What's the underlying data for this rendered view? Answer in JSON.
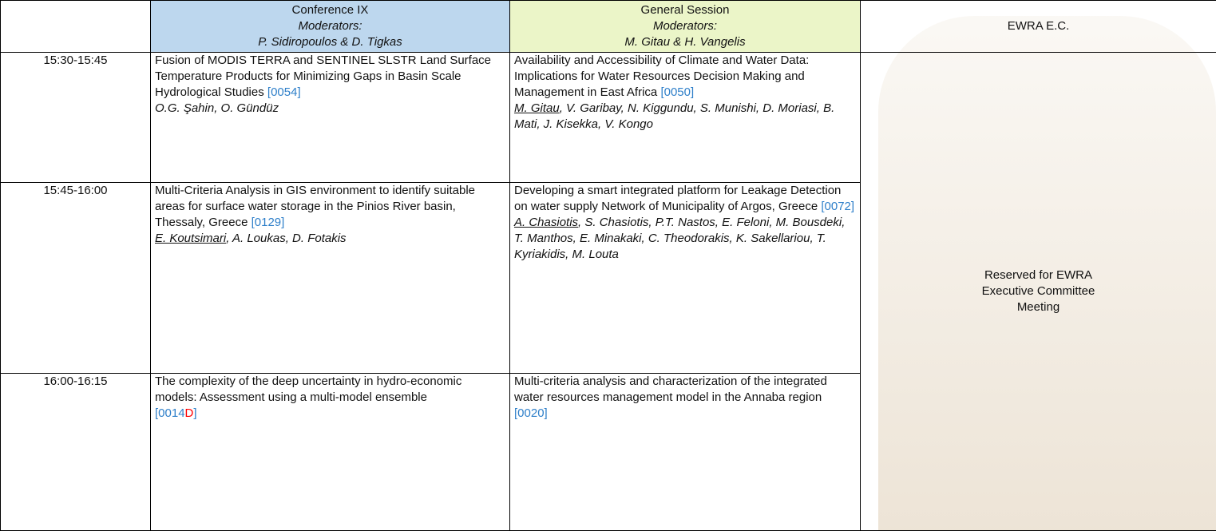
{
  "header": {
    "sessions": [
      {
        "title": "Conference IX",
        "moderators_label": "Moderators:",
        "moderators": "P. Sidiropoulos & D. Tigkas"
      },
      {
        "title": "General Session",
        "moderators_label": "Moderators:",
        "moderators": "M. Gitau & H. Vangelis"
      },
      {
        "title": "EWRA E.C."
      }
    ]
  },
  "rows": [
    {
      "time": "15:30-15:45",
      "papers": [
        {
          "title": "Fusion of MODIS TERRA and SENTINEL SLSTR Land Surface Temperature Products for Minimizing Gaps in Basin Scale Hydrological Studies",
          "code": "[0054]",
          "authors": "O.G. Şahin, O. Gündüz"
        },
        {
          "title": "Availability and Accessibility of Climate and Water Data: Implications for Water Resources Decision Making and Management in East Africa",
          "code": "[0050]",
          "presenter": "M. Gitau",
          "authors": ", V. Garibay, N. Kiggundu, S. Munishi, D. Moriasi, B. Mati, J. Kisekka, V. Kongo"
        }
      ]
    },
    {
      "time": "15:45-16:00",
      "papers": [
        {
          "title": "Multi-Criteria Analysis in GIS environment to identify suitable areas for surface water storage in the Pinios River basin, Thessaly, Greece",
          "code": "[0129]",
          "presenter": "E. Koutsimari",
          "authors": ", A. Loukas, D. Fotakis"
        },
        {
          "title": "Developing a smart integrated platform for Leakage Detection on water supply Network of Municipality of Argos, Greece",
          "code": "[0072]",
          "presenter": "A. Chasiotis",
          "authors": ", S. Chasiotis, P.T. Nastos, E. Feloni, M. Bousdeki, T. Manthos, E. Minakaki, C. Theodorakis, K. Sakellariou, T. Kyriakidis, M. Louta"
        }
      ]
    },
    {
      "time": "16:00-16:15",
      "papers": [
        {
          "title": "The complexity of the deep uncertainty in hydro-economic models: Assessment using a multi-model ensemble",
          "code": "[0014",
          "code_flag": "D",
          "code_end": "]"
        },
        {
          "title": "Multi-criteria analysis and characterization of the integrated water resources management model in the Annaba region",
          "code": "[0020]"
        }
      ]
    }
  ],
  "reserved": "Reserved for EWRA Executive Committee Meeting"
}
